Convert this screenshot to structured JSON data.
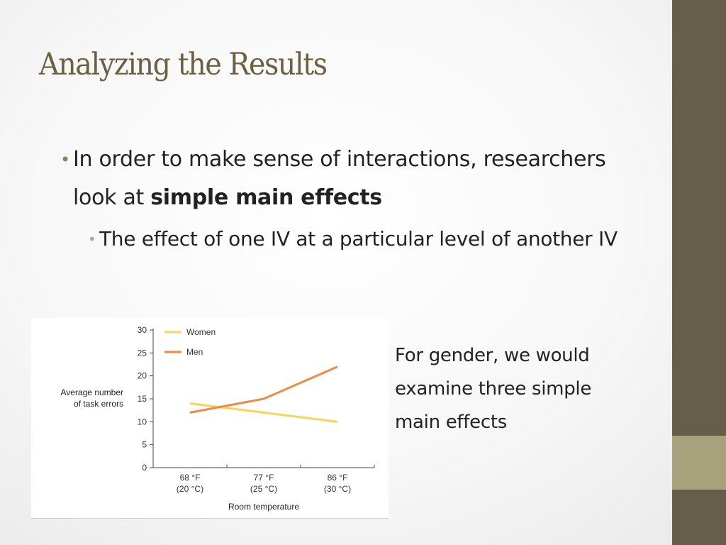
{
  "slide": {
    "title": "Analyzing the Results",
    "bullet1_text": "In order to make sense of interactions, researchers look at ",
    "bullet1_bold": "simple main effects",
    "bullet2_text": "The effect of one IV at a particular level of another IV",
    "note": "For gender, we would\n examine three simple\nmain effects"
  },
  "colors": {
    "sidebar": "#665e48",
    "sidebar_accent": "#a7a27b",
    "title": "#6b6140",
    "women_line": "#f8d45a",
    "men_line": "#ee8a45"
  },
  "chart_data": {
    "type": "line",
    "categories": [
      [
        "68 °F",
        "(20 °C)"
      ],
      [
        "77 °F",
        "(25 °C)"
      ],
      [
        "86 °F",
        "(30 °C)"
      ]
    ],
    "series": [
      {
        "name": "Women",
        "values": [
          14,
          12,
          10
        ],
        "color": "#f8d45a"
      },
      {
        "name": "Men",
        "values": [
          12,
          15,
          22
        ],
        "color": "#ee8a45"
      }
    ],
    "title": "",
    "xlabel": "Room temperature",
    "ylabel": [
      "Average number",
      "of task errors"
    ],
    "ylim": [
      0,
      30
    ],
    "yticks": [
      0,
      5,
      10,
      15,
      20,
      25,
      30
    ],
    "grid": false,
    "legend": "top-left"
  }
}
